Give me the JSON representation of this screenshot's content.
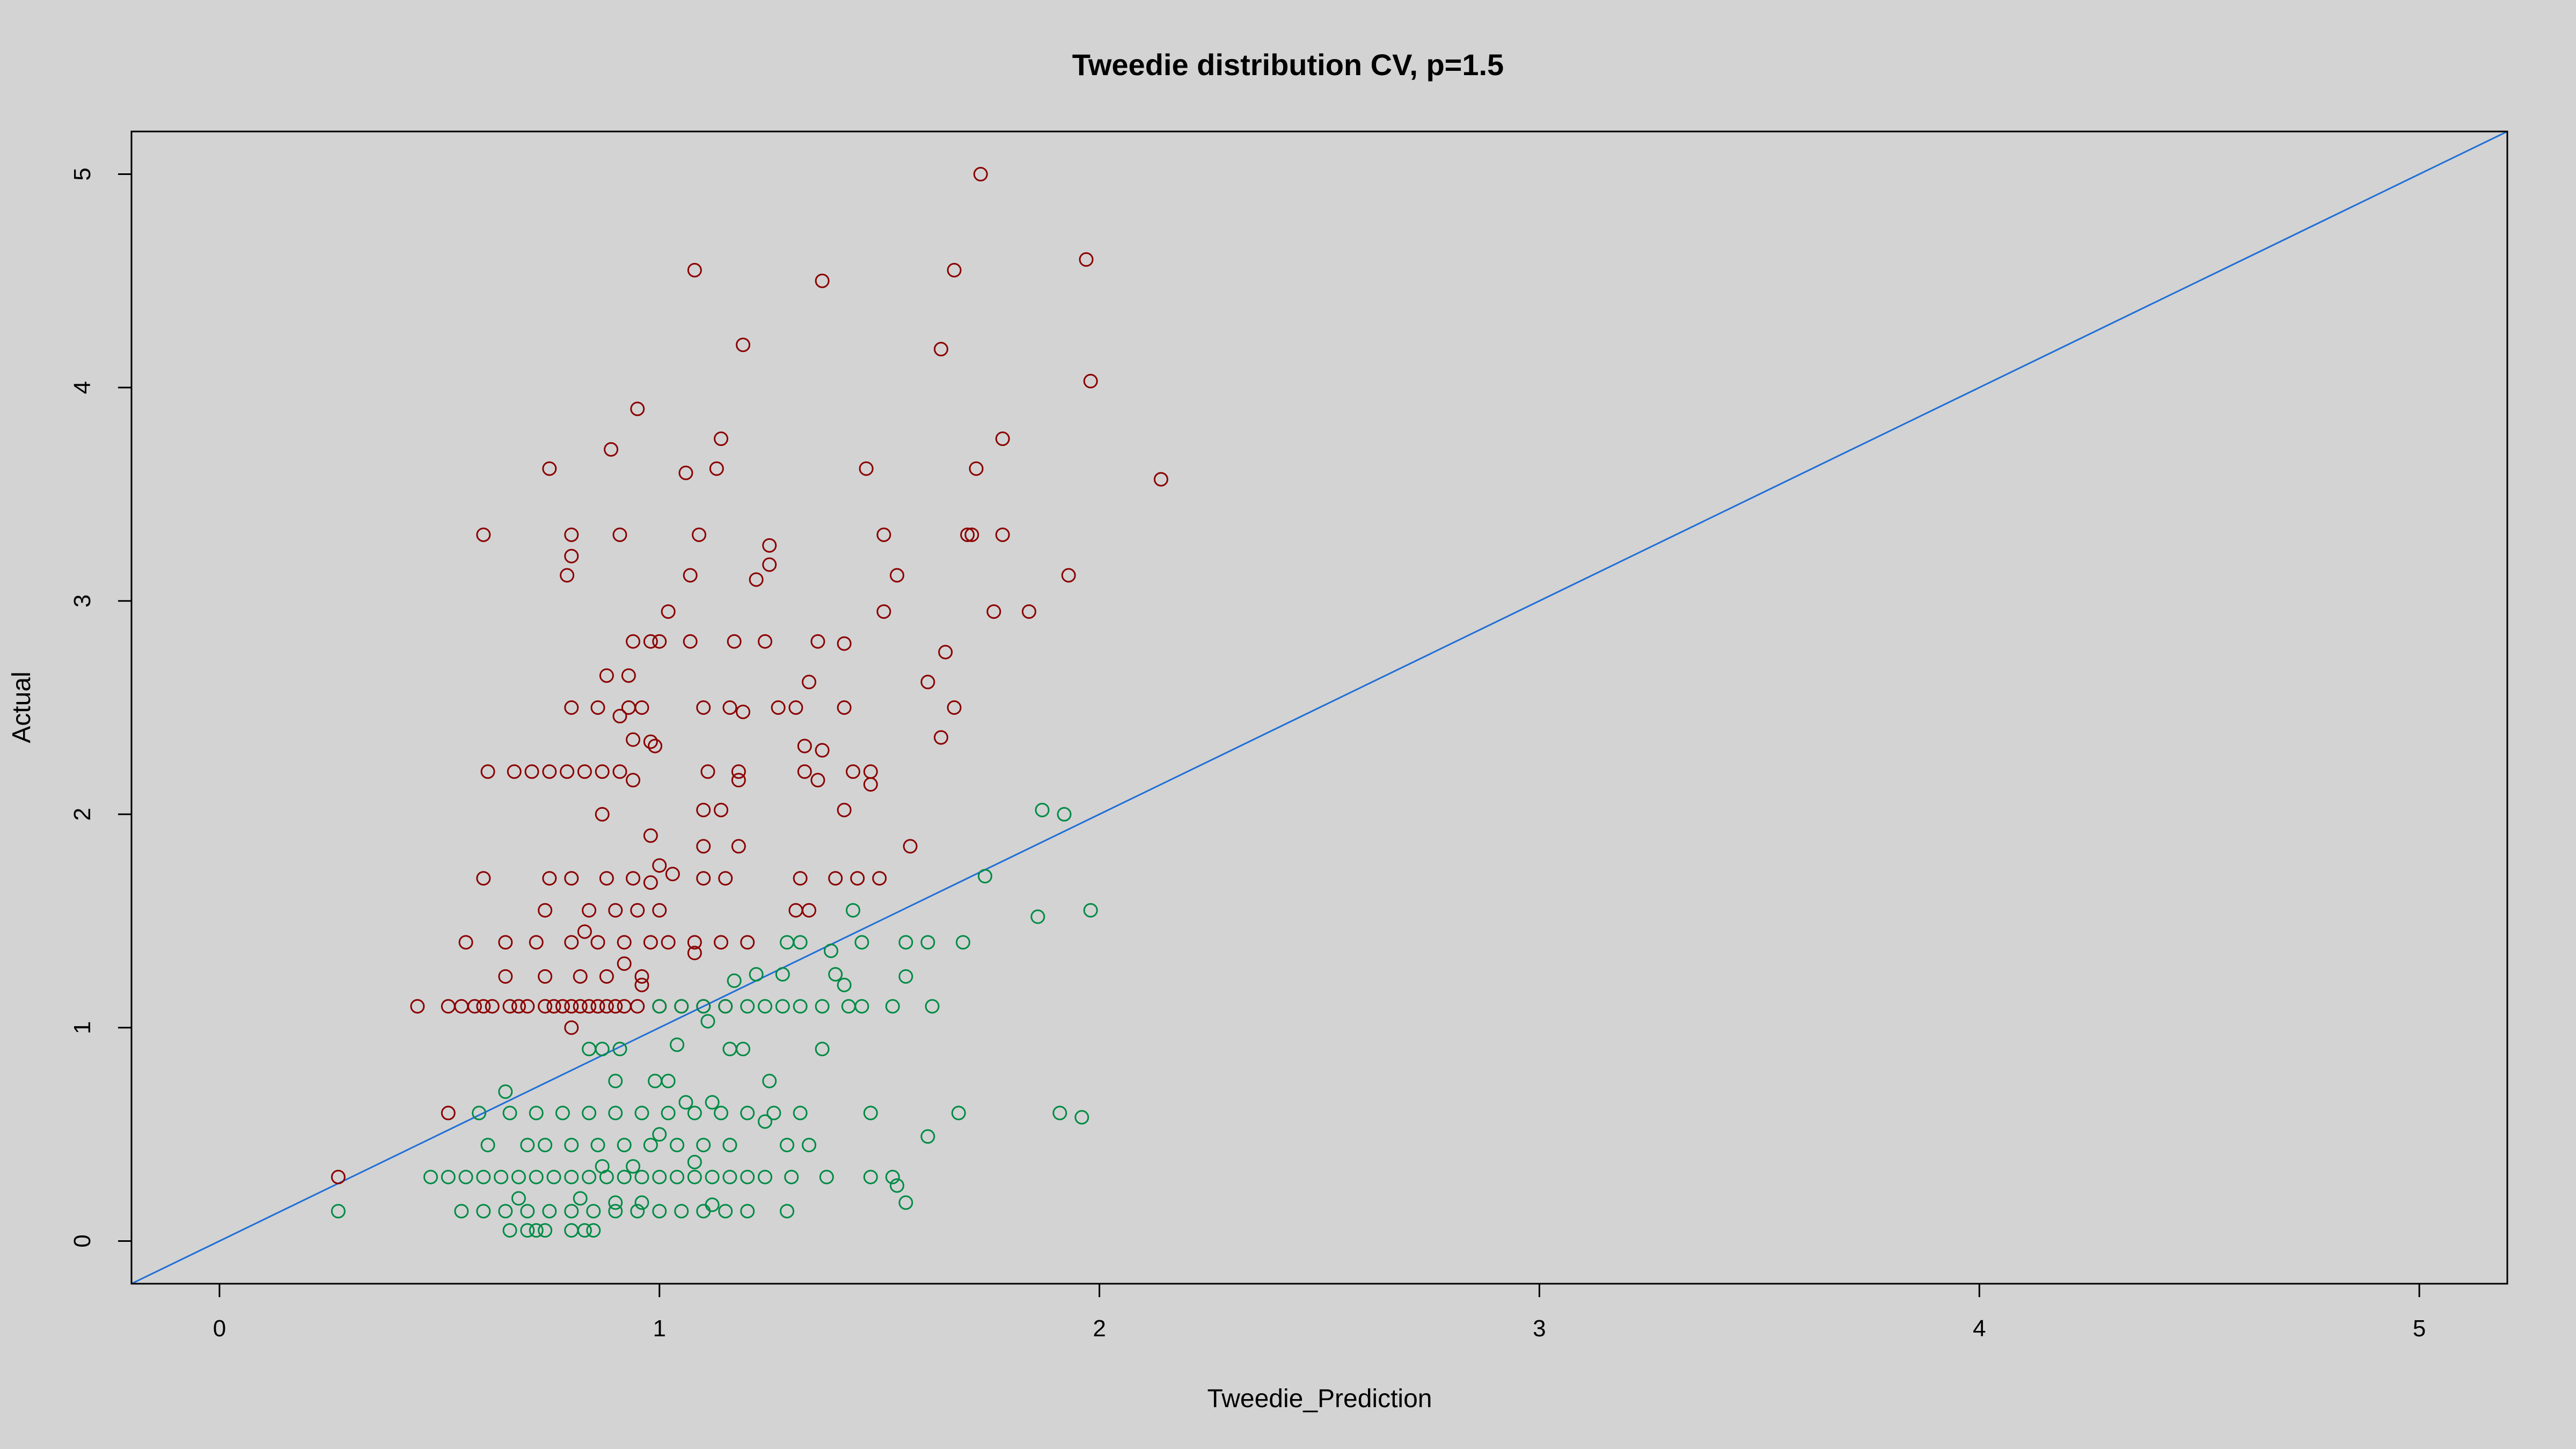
{
  "chart_data": {
    "type": "scatter",
    "title": "Tweedie distribution CV, p=1.5",
    "xlabel": "Tweedie_Prediction",
    "ylabel": "Actual",
    "xlim": [
      -0.2,
      5.2
    ],
    "ylim": [
      -0.2,
      5.2
    ],
    "x_ticks": [
      "0",
      "1",
      "2",
      "3",
      "4",
      "5"
    ],
    "y_ticks": [
      "0",
      "1",
      "2",
      "3",
      "4",
      "5"
    ],
    "grid": false,
    "legend": "none",
    "reference_line": {
      "slope": 1,
      "intercept": 0,
      "color": "#1f6fd6"
    },
    "colors": {
      "background": "#d3d3d3",
      "red_points": "#8b0000",
      "green_points": "#008b45",
      "axes": "#000000"
    },
    "series": [
      {
        "color": "#8b0000",
        "points": [
          [
            0.27,
            0.3
          ],
          [
            0.45,
            1.1
          ],
          [
            0.52,
            1.1
          ],
          [
            0.55,
            1.1
          ],
          [
            0.58,
            1.1
          ],
          [
            0.62,
            1.1
          ],
          [
            0.66,
            1.1
          ],
          [
            0.7,
            1.1
          ],
          [
            0.74,
            1.1
          ],
          [
            0.78,
            1.1
          ],
          [
            0.82,
            1.1
          ],
          [
            0.86,
            1.1
          ],
          [
            0.9,
            1.1
          ],
          [
            0.95,
            1.1
          ],
          [
            1.0,
            1.1
          ],
          [
            1.05,
            1.1
          ],
          [
            1.1,
            1.1
          ],
          [
            1.15,
            1.1
          ],
          [
            0.52,
            0.6
          ],
          [
            0.6,
            1.1
          ],
          [
            0.68,
            1.1
          ],
          [
            0.76,
            1.1
          ],
          [
            0.8,
            1.1
          ],
          [
            0.84,
            1.1
          ],
          [
            0.88,
            1.1
          ],
          [
            0.92,
            1.1
          ],
          [
            0.56,
            1.4
          ],
          [
            0.65,
            1.4
          ],
          [
            0.72,
            1.4
          ],
          [
            0.8,
            1.4
          ],
          [
            0.86,
            1.4
          ],
          [
            0.92,
            1.4
          ],
          [
            0.98,
            1.4
          ],
          [
            1.02,
            1.4
          ],
          [
            1.08,
            1.4
          ],
          [
            1.14,
            1.4
          ],
          [
            1.2,
            1.4
          ],
          [
            0.65,
            1.24
          ],
          [
            0.74,
            1.24
          ],
          [
            0.82,
            1.24
          ],
          [
            0.88,
            1.24
          ],
          [
            0.96,
            1.24
          ],
          [
            0.92,
            1.3
          ],
          [
            0.83,
            1.45
          ],
          [
            0.8,
            1.0
          ],
          [
            0.96,
            1.2
          ],
          [
            1.08,
            1.35
          ],
          [
            0.6,
            1.7
          ],
          [
            0.75,
            1.7
          ],
          [
            0.8,
            1.7
          ],
          [
            0.88,
            1.7
          ],
          [
            0.94,
            1.7
          ],
          [
            0.98,
            1.68
          ],
          [
            1.03,
            1.72
          ],
          [
            1.1,
            1.7
          ],
          [
            1.15,
            1.7
          ],
          [
            1.32,
            1.7
          ],
          [
            1.4,
            1.7
          ],
          [
            1.45,
            1.7
          ],
          [
            1.5,
            1.7
          ],
          [
            0.74,
            1.55
          ],
          [
            0.84,
            1.55
          ],
          [
            0.9,
            1.55
          ],
          [
            0.95,
            1.55
          ],
          [
            1.0,
            1.55
          ],
          [
            1.31,
            1.55
          ],
          [
            1.34,
            1.55
          ],
          [
            0.98,
            1.9
          ],
          [
            1.0,
            1.76
          ],
          [
            1.1,
            1.85
          ],
          [
            1.18,
            1.85
          ],
          [
            1.42,
            2.02
          ],
          [
            1.57,
            1.85
          ],
          [
            0.87,
            2.0
          ],
          [
            1.1,
            2.02
          ],
          [
            1.14,
            2.02
          ],
          [
            1.48,
            2.14
          ],
          [
            0.61,
            2.2
          ],
          [
            0.67,
            2.2
          ],
          [
            0.71,
            2.2
          ],
          [
            0.75,
            2.2
          ],
          [
            0.79,
            2.2
          ],
          [
            0.83,
            2.2
          ],
          [
            0.87,
            2.2
          ],
          [
            0.91,
            2.2
          ],
          [
            0.94,
            2.16
          ],
          [
            1.11,
            2.2
          ],
          [
            1.18,
            2.2
          ],
          [
            1.33,
            2.2
          ],
          [
            1.44,
            2.2
          ],
          [
            1.48,
            2.2
          ],
          [
            1.36,
            2.16
          ],
          [
            1.33,
            2.32
          ],
          [
            1.37,
            2.3
          ],
          [
            1.18,
            2.16
          ],
          [
            0.99,
            2.32
          ],
          [
            0.98,
            2.34
          ],
          [
            0.94,
            2.35
          ],
          [
            0.8,
            2.5
          ],
          [
            0.86,
            2.5
          ],
          [
            0.93,
            2.5
          ],
          [
            0.96,
            2.5
          ],
          [
            1.1,
            2.5
          ],
          [
            1.16,
            2.5
          ],
          [
            1.19,
            2.48
          ],
          [
            1.27,
            2.5
          ],
          [
            1.31,
            2.5
          ],
          [
            1.42,
            2.5
          ],
          [
            1.67,
            2.5
          ],
          [
            0.91,
            2.46
          ],
          [
            0.88,
            2.65
          ],
          [
            0.93,
            2.65
          ],
          [
            1.34,
            2.62
          ],
          [
            1.61,
            2.62
          ],
          [
            1.64,
            2.36
          ],
          [
            1.65,
            2.76
          ],
          [
            0.94,
            2.81
          ],
          [
            0.98,
            2.81
          ],
          [
            1.0,
            2.81
          ],
          [
            1.07,
            2.81
          ],
          [
            1.17,
            2.81
          ],
          [
            1.24,
            2.81
          ],
          [
            1.36,
            2.81
          ],
          [
            1.42,
            2.8
          ],
          [
            1.02,
            2.95
          ],
          [
            1.51,
            2.95
          ],
          [
            1.76,
            2.95
          ],
          [
            1.84,
            2.95
          ],
          [
            0.79,
            3.12
          ],
          [
            1.07,
            3.12
          ],
          [
            1.22,
            3.1
          ],
          [
            1.25,
            3.17
          ],
          [
            1.54,
            3.12
          ],
          [
            1.93,
            3.12
          ],
          [
            0.8,
            3.21
          ],
          [
            0.6,
            3.31
          ],
          [
            0.8,
            3.31
          ],
          [
            0.91,
            3.31
          ],
          [
            1.09,
            3.31
          ],
          [
            1.25,
            3.26
          ],
          [
            1.51,
            3.31
          ],
          [
            1.7,
            3.31
          ],
          [
            1.71,
            3.31
          ],
          [
            1.78,
            3.31
          ],
          [
            0.75,
            3.62
          ],
          [
            1.06,
            3.6
          ],
          [
            1.13,
            3.62
          ],
          [
            1.47,
            3.62
          ],
          [
            1.72,
            3.62
          ],
          [
            2.14,
            3.57
          ],
          [
            0.89,
            3.71
          ],
          [
            1.14,
            3.76
          ],
          [
            1.78,
            3.76
          ],
          [
            0.95,
            3.9
          ],
          [
            1.98,
            4.03
          ],
          [
            1.19,
            4.2
          ],
          [
            1.64,
            4.18
          ],
          [
            1.08,
            4.55
          ],
          [
            1.67,
            4.55
          ],
          [
            1.97,
            4.6
          ],
          [
            1.37,
            4.5
          ],
          [
            1.73,
            5.0
          ]
        ]
      },
      {
        "color": "#008b45",
        "points": [
          [
            0.27,
            0.14
          ],
          [
            0.48,
            0.3
          ],
          [
            0.52,
            0.3
          ],
          [
            0.56,
            0.3
          ],
          [
            0.6,
            0.3
          ],
          [
            0.64,
            0.3
          ],
          [
            0.68,
            0.3
          ],
          [
            0.72,
            0.3
          ],
          [
            0.76,
            0.3
          ],
          [
            0.8,
            0.3
          ],
          [
            0.84,
            0.3
          ],
          [
            0.88,
            0.3
          ],
          [
            0.92,
            0.3
          ],
          [
            0.96,
            0.3
          ],
          [
            1.0,
            0.3
          ],
          [
            1.04,
            0.3
          ],
          [
            1.08,
            0.3
          ],
          [
            1.12,
            0.3
          ],
          [
            1.16,
            0.3
          ],
          [
            1.2,
            0.3
          ],
          [
            1.24,
            0.3
          ],
          [
            1.3,
            0.3
          ],
          [
            1.38,
            0.3
          ],
          [
            1.48,
            0.3
          ],
          [
            1.53,
            0.3
          ],
          [
            1.54,
            0.26
          ],
          [
            0.55,
            0.14
          ],
          [
            0.6,
            0.14
          ],
          [
            0.65,
            0.14
          ],
          [
            0.7,
            0.14
          ],
          [
            0.75,
            0.14
          ],
          [
            0.8,
            0.14
          ],
          [
            0.85,
            0.14
          ],
          [
            0.9,
            0.14
          ],
          [
            0.95,
            0.14
          ],
          [
            1.0,
            0.14
          ],
          [
            1.05,
            0.14
          ],
          [
            1.1,
            0.14
          ],
          [
            1.15,
            0.14
          ],
          [
            1.2,
            0.14
          ],
          [
            1.29,
            0.14
          ],
          [
            1.56,
            0.18
          ],
          [
            0.66,
            0.05
          ],
          [
            0.7,
            0.05
          ],
          [
            0.72,
            0.05
          ],
          [
            0.74,
            0.05
          ],
          [
            0.8,
            0.05
          ],
          [
            0.83,
            0.05
          ],
          [
            0.85,
            0.05
          ],
          [
            0.68,
            0.2
          ],
          [
            0.82,
            0.2
          ],
          [
            0.9,
            0.18
          ],
          [
            0.96,
            0.18
          ],
          [
            1.12,
            0.17
          ],
          [
            0.61,
            0.45
          ],
          [
            0.7,
            0.45
          ],
          [
            0.74,
            0.45
          ],
          [
            0.8,
            0.45
          ],
          [
            0.86,
            0.45
          ],
          [
            0.92,
            0.45
          ],
          [
            0.98,
            0.45
          ],
          [
            1.04,
            0.45
          ],
          [
            1.1,
            0.45
          ],
          [
            1.16,
            0.45
          ],
          [
            1.29,
            0.45
          ],
          [
            1.34,
            0.45
          ],
          [
            0.87,
            0.35
          ],
          [
            0.94,
            0.35
          ],
          [
            1.0,
            0.5
          ],
          [
            1.08,
            0.37
          ],
          [
            0.59,
            0.6
          ],
          [
            0.66,
            0.6
          ],
          [
            0.72,
            0.6
          ],
          [
            0.78,
            0.6
          ],
          [
            0.84,
            0.6
          ],
          [
            0.9,
            0.6
          ],
          [
            0.96,
            0.6
          ],
          [
            1.02,
            0.6
          ],
          [
            1.08,
            0.6
          ],
          [
            1.14,
            0.6
          ],
          [
            1.2,
            0.6
          ],
          [
            1.26,
            0.6
          ],
          [
            1.32,
            0.6
          ],
          [
            1.48,
            0.6
          ],
          [
            1.68,
            0.6
          ],
          [
            1.91,
            0.6
          ],
          [
            1.96,
            0.58
          ],
          [
            1.24,
            0.56
          ],
          [
            1.61,
            0.49
          ],
          [
            0.65,
            0.7
          ],
          [
            0.9,
            0.75
          ],
          [
            0.99,
            0.75
          ],
          [
            1.02,
            0.75
          ],
          [
            1.12,
            0.65
          ],
          [
            1.25,
            0.75
          ],
          [
            1.06,
            0.65
          ],
          [
            0.84,
            0.9
          ],
          [
            0.87,
            0.9
          ],
          [
            0.91,
            0.9
          ],
          [
            1.04,
            0.92
          ],
          [
            1.16,
            0.9
          ],
          [
            1.19,
            0.9
          ],
          [
            1.37,
            0.9
          ],
          [
            1.11,
            1.03
          ],
          [
            1.0,
            1.1
          ],
          [
            1.05,
            1.1
          ],
          [
            1.1,
            1.1
          ],
          [
            1.15,
            1.1
          ],
          [
            1.2,
            1.1
          ],
          [
            1.24,
            1.1
          ],
          [
            1.28,
            1.1
          ],
          [
            1.32,
            1.1
          ],
          [
            1.37,
            1.1
          ],
          [
            1.43,
            1.1
          ],
          [
            1.46,
            1.1
          ],
          [
            1.53,
            1.1
          ],
          [
            1.62,
            1.1
          ],
          [
            1.42,
            1.2
          ],
          [
            1.22,
            1.25
          ],
          [
            1.28,
            1.25
          ],
          [
            1.4,
            1.25
          ],
          [
            1.56,
            1.24
          ],
          [
            1.17,
            1.22
          ],
          [
            1.29,
            1.4
          ],
          [
            1.32,
            1.4
          ],
          [
            1.39,
            1.36
          ],
          [
            1.46,
            1.4
          ],
          [
            1.56,
            1.4
          ],
          [
            1.61,
            1.4
          ],
          [
            1.69,
            1.4
          ],
          [
            1.44,
            1.55
          ],
          [
            1.74,
            1.71
          ],
          [
            1.86,
            1.52
          ],
          [
            1.98,
            1.55
          ],
          [
            1.87,
            2.02
          ],
          [
            1.92,
            2.0
          ]
        ]
      }
    ]
  }
}
